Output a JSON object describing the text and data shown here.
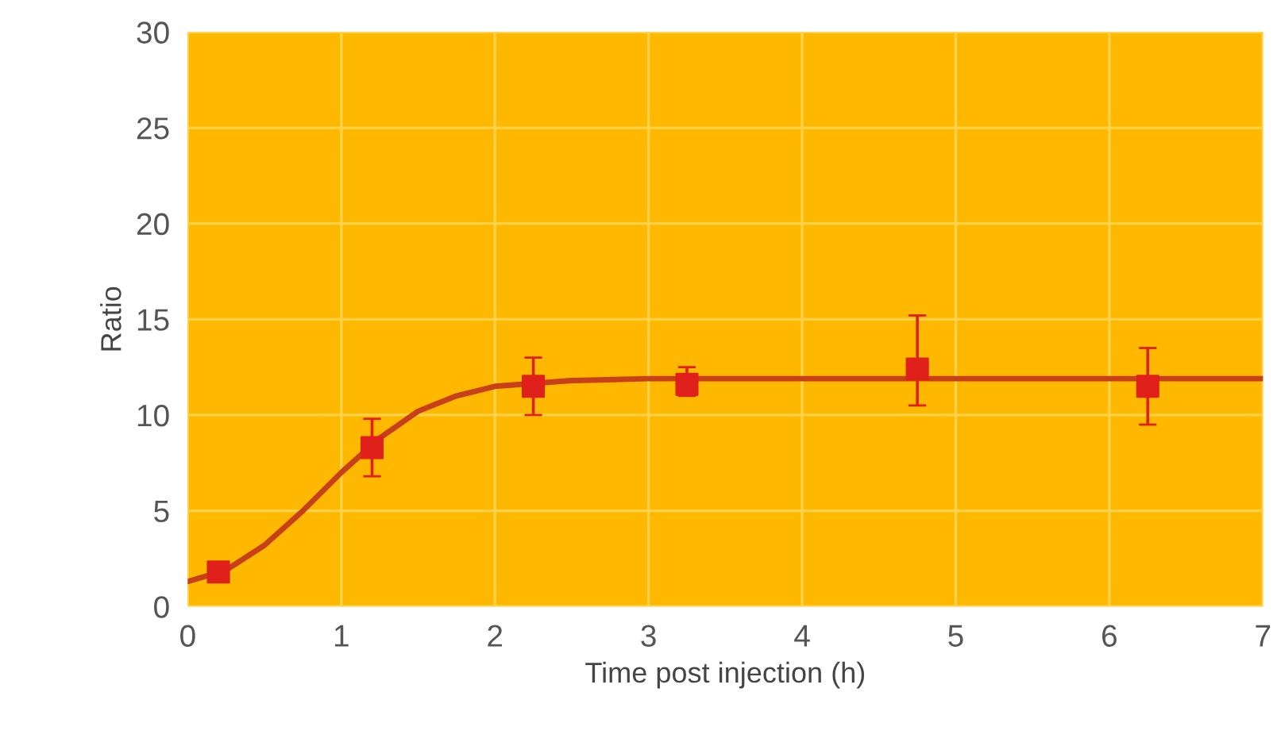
{
  "chart_data": {
    "type": "scatter",
    "xlabel": "Time post injection (h)",
    "ylabel": "Ratio",
    "xlim": [
      0,
      7
    ],
    "xticks": [
      0,
      1,
      2,
      3,
      4,
      5,
      6,
      7
    ],
    "ylim": [
      0,
      30
    ],
    "yticks": [
      0,
      5,
      10,
      15,
      20,
      25,
      30
    ],
    "grid": true,
    "series": [
      {
        "type": "line",
        "color": "#c8401a",
        "x": [
          0,
          0.25,
          0.5,
          0.75,
          1.0,
          1.25,
          1.5,
          1.75,
          2.0,
          2.5,
          3.0,
          7.0
        ],
        "values": [
          1.3,
          1.9,
          3.2,
          5.0,
          7.0,
          8.8,
          10.2,
          11.0,
          11.5,
          11.8,
          11.9,
          11.9
        ]
      },
      {
        "marker": "square",
        "color": "#e0201a",
        "x": [
          0.2,
          1.2,
          2.25,
          3.25,
          4.75,
          6.25
        ],
        "values": [
          1.8,
          8.3,
          11.5,
          11.6,
          12.4,
          11.5
        ],
        "errors": [
          null,
          [
            6.8,
            9.8
          ],
          [
            10.0,
            13.0
          ],
          [
            11.0,
            12.5
          ],
          [
            10.5,
            15.2
          ],
          [
            9.5,
            13.5
          ]
        ]
      }
    ]
  }
}
